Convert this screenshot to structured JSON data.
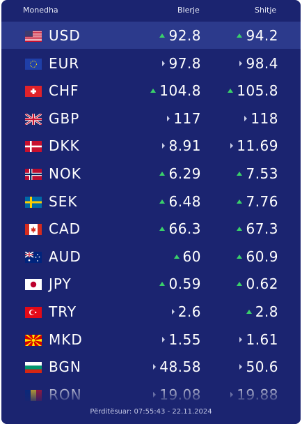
{
  "header": {
    "currency": "Monedha",
    "buy": "Blerje",
    "sell": "Shitje"
  },
  "rows": [
    {
      "code": "USD",
      "buy": "92.8",
      "sell": "94.2",
      "buy_trend": "up",
      "sell_trend": "up",
      "flag": "us-flag-icon"
    },
    {
      "code": "EUR",
      "buy": "97.8",
      "sell": "98.4",
      "buy_trend": "flat",
      "sell_trend": "flat",
      "flag": "eu-flag-icon"
    },
    {
      "code": "CHF",
      "buy": "104.8",
      "sell": "105.8",
      "buy_trend": "up",
      "sell_trend": "up",
      "flag": "ch-flag-icon"
    },
    {
      "code": "GBP",
      "buy": "117",
      "sell": "118",
      "buy_trend": "flat",
      "sell_trend": "flat",
      "flag": "gb-flag-icon"
    },
    {
      "code": "DKK",
      "buy": "8.91",
      "sell": "11.69",
      "buy_trend": "flat",
      "sell_trend": "flat",
      "flag": "dk-flag-icon"
    },
    {
      "code": "NOK",
      "buy": "6.29",
      "sell": "7.53",
      "buy_trend": "up",
      "sell_trend": "up",
      "flag": "no-flag-icon"
    },
    {
      "code": "SEK",
      "buy": "6.48",
      "sell": "7.76",
      "buy_trend": "up",
      "sell_trend": "up",
      "flag": "se-flag-icon"
    },
    {
      "code": "CAD",
      "buy": "66.3",
      "sell": "67.3",
      "buy_trend": "up",
      "sell_trend": "up",
      "flag": "ca-flag-icon"
    },
    {
      "code": "AUD",
      "buy": "60",
      "sell": "60.9",
      "buy_trend": "up",
      "sell_trend": "up",
      "flag": "au-flag-icon"
    },
    {
      "code": "JPY",
      "buy": "0.59",
      "sell": "0.62",
      "buy_trend": "up",
      "sell_trend": "up",
      "flag": "jp-flag-icon"
    },
    {
      "code": "TRY",
      "buy": "2.6",
      "sell": "2.8",
      "buy_trend": "flat",
      "sell_trend": "up",
      "flag": "tr-flag-icon"
    },
    {
      "code": "MKD",
      "buy": "1.55",
      "sell": "1.61",
      "buy_trend": "flat",
      "sell_trend": "flat",
      "flag": "mk-flag-icon"
    },
    {
      "code": "BGN",
      "buy": "48.58",
      "sell": "50.6",
      "buy_trend": "flat",
      "sell_trend": "flat",
      "flag": "bg-flag-icon"
    },
    {
      "code": "RON",
      "buy": "19.08",
      "sell": "19.88",
      "buy_trend": "flat",
      "sell_trend": "flat",
      "flag": "ro-flag-icon"
    }
  ],
  "footer": {
    "updated": "Përditësuar: 07:55:43 - 22.11.2024"
  },
  "colors": {
    "panel": "#1b2470",
    "highlight": "#2c3a8c",
    "up": "#3ad16a",
    "flat": "#c9cde6"
  }
}
